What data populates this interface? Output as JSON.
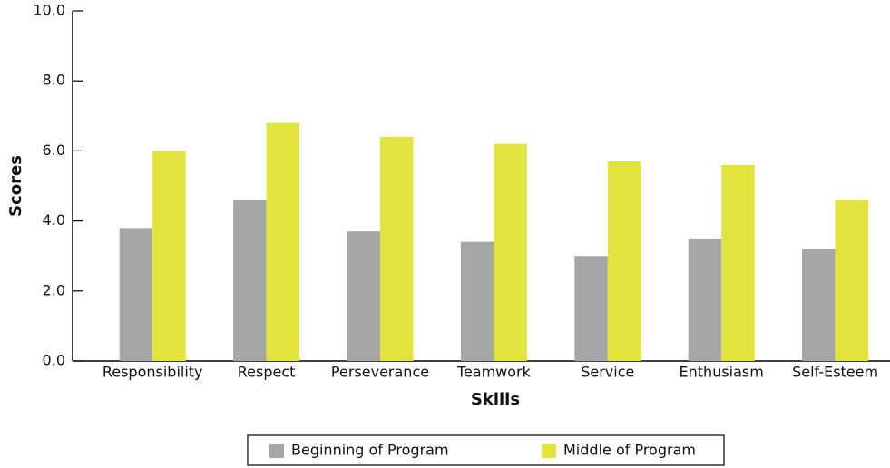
{
  "chart_data": {
    "type": "bar",
    "xlabel": "Skills",
    "ylabel": "Scores",
    "categories": [
      "Responsibility",
      "Respect",
      "Perseverance",
      "Teamwork",
      "Service",
      "Enthusiasm",
      "Self-Esteem"
    ],
    "series": [
      {
        "name": "Beginning of Program",
        "color": "#a6a6a6",
        "values": [
          3.8,
          4.6,
          3.7,
          3.4,
          3.0,
          3.5,
          3.2
        ]
      },
      {
        "name": "Middle of Program",
        "color": "#e2e33c",
        "values": [
          6.0,
          6.8,
          6.4,
          6.2,
          5.7,
          5.6,
          4.6
        ]
      }
    ],
    "ylim": [
      0,
      10
    ],
    "yticks": [
      {
        "value": 0,
        "label": "0.0"
      },
      {
        "value": 2,
        "label": "2.0"
      },
      {
        "value": 4,
        "label": "4.0"
      },
      {
        "value": 6,
        "label": "6.0"
      },
      {
        "value": 8,
        "label": "8.0"
      },
      {
        "value": 10,
        "label": "10.0"
      }
    ],
    "grid": false,
    "legend": "bottom"
  }
}
